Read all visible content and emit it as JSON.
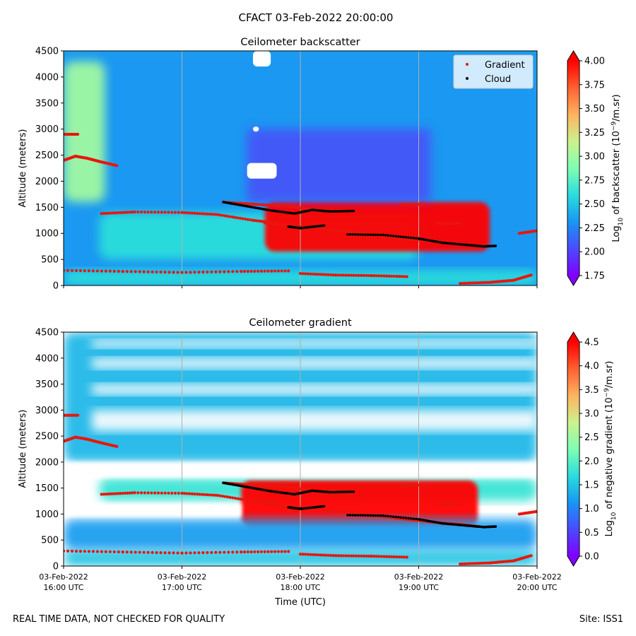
{
  "figure": {
    "title": "CFACT 03-Feb-2022 20:00:00",
    "footer_left": "REAL TIME DATA, NOT CHECKED FOR QUALITY",
    "footer_right": "Site: ISS1"
  },
  "colors": {
    "gradient_marker": "#e8160d",
    "cloud_marker": "#000000",
    "colormap": [
      "#8000ff",
      "#4a4bfc",
      "#1996f3",
      "#2adddd",
      "#7ffeb3",
      "#ccf28c",
      "#ffb360",
      "#ff6030",
      "#ff0000"
    ]
  },
  "chart_data": [
    {
      "type": "heatmap",
      "title": "Ceilometer backscatter",
      "xlabel": "",
      "ylabel": "Altitude (meters)",
      "x_range_hours_utc": [
        16,
        20
      ],
      "ylim": [
        0,
        4500
      ],
      "yticks": [
        0,
        500,
        1000,
        1500,
        2000,
        2500,
        3000,
        3500,
        4000,
        4500
      ],
      "xticks": [
        "16:00",
        "17:00",
        "18:00",
        "19:00",
        "20:00"
      ],
      "grid": "vertical lines at hours",
      "legend": {
        "placement": "top-right",
        "entries": [
          "Gradient",
          "Cloud"
        ]
      },
      "colorbar": {
        "label": "Log10 of backscatter (10^-9/m.sr)",
        "min": 1.75,
        "max": 4.0,
        "ticks": [
          "4.00",
          "3.75",
          "3.50",
          "3.25",
          "3.00",
          "2.75",
          "2.50",
          "2.25",
          "2.00",
          "1.75"
        ]
      },
      "layers": [
        {
          "name": "background",
          "y_range": [
            0,
            4500
          ],
          "value": 2.3
        },
        {
          "name": "upper-left plume",
          "x_range": [
            16.0,
            16.35
          ],
          "y_range": [
            1600,
            4300
          ],
          "value": 3.0
        },
        {
          "name": "boundary layer",
          "x_range": [
            16.3,
            19.0
          ],
          "y_range": [
            500,
            1400
          ],
          "value": 2.6
        },
        {
          "name": "cloud deck",
          "x_range": [
            17.7,
            19.6
          ],
          "y_range": [
            650,
            1600
          ],
          "value": 4.1
        },
        {
          "name": "surface layer",
          "y_range": [
            0,
            300
          ],
          "value": 2.6
        }
      ],
      "gradient_points": [
        {
          "x": [
            16.0,
            16.12
          ],
          "y": [
            2900,
            2900
          ]
        },
        {
          "x": [
            16.0,
            16.1,
            16.2,
            16.3,
            16.45
          ],
          "y": [
            2400,
            2480,
            2440,
            2380,
            2300
          ]
        },
        {
          "x": [
            16.32,
            16.6,
            17.0,
            17.3,
            17.6,
            17.8
          ],
          "y": [
            1380,
            1410,
            1400,
            1360,
            1250,
            1200
          ]
        },
        {
          "x": [
            17.35,
            17.6,
            17.9,
            18.1,
            18.4
          ],
          "y": [
            1600,
            1560,
            1520,
            1450,
            1440
          ]
        },
        {
          "x": [
            17.7,
            18.0,
            18.4,
            18.8,
            19.1,
            19.35,
            19.5
          ],
          "y": [
            1200,
            1120,
            1040,
            920,
            850,
            800,
            760
          ]
        },
        {
          "x": [
            18.85,
            19.05
          ],
          "y": [
            1550,
            1560
          ]
        },
        {
          "x": [
            19.15,
            19.35
          ],
          "y": [
            1190,
            1190
          ]
        },
        {
          "x": [
            19.85,
            20.0
          ],
          "y": [
            1000,
            1050
          ]
        },
        {
          "x": [
            16.0,
            16.5,
            17.0,
            17.5,
            17.9
          ],
          "y": [
            290,
            270,
            250,
            270,
            280
          ]
        },
        {
          "x": [
            18.0,
            18.3,
            18.6,
            18.9
          ],
          "y": [
            230,
            200,
            190,
            170
          ]
        },
        {
          "x": [
            19.35,
            19.6,
            19.8,
            19.95
          ],
          "y": [
            40,
            60,
            100,
            200
          ]
        }
      ],
      "cloud_points": [
        {
          "x": [
            17.35,
            17.55,
            17.75,
            17.95,
            18.1,
            18.25,
            18.45
          ],
          "y": [
            1600,
            1520,
            1440,
            1380,
            1450,
            1420,
            1430
          ]
        },
        {
          "x": [
            17.9,
            18.0,
            18.2
          ],
          "y": [
            1130,
            1100,
            1150
          ]
        },
        {
          "x": [
            18.4,
            18.7,
            19.0,
            19.2,
            19.4,
            19.55,
            19.65
          ],
          "y": [
            980,
            970,
            900,
            820,
            780,
            750,
            760
          ]
        }
      ],
      "blank_regions": [
        {
          "x_range": [
            17.55,
            17.8
          ],
          "y_range": [
            2050,
            2350
          ]
        },
        {
          "x_range": [
            17.6,
            17.65
          ],
          "y_range": [
            2950,
            3050
          ]
        },
        {
          "x_range": [
            17.6,
            17.75
          ],
          "y_range": [
            4200,
            4500
          ]
        }
      ]
    },
    {
      "type": "heatmap",
      "title": "Ceilometer gradient",
      "xlabel": "Time (UTC)",
      "ylabel": "Altitude (meters)",
      "x_range_hours_utc": [
        16,
        20
      ],
      "ylim": [
        0,
        4500
      ],
      "yticks": [
        0,
        500,
        1000,
        1500,
        2000,
        2500,
        3000,
        3500,
        4000,
        4500
      ],
      "xticks": [
        "03-Feb-2022\n16:00 UTC",
        "03-Feb-2022\n17:00 UTC",
        "03-Feb-2022\n18:00 UTC",
        "03-Feb-2022\n19:00 UTC",
        "03-Feb-2022\n20:00 UTC"
      ],
      "grid": "vertical lines at hours",
      "colorbar": {
        "label": "Log10 of negative gradient (10^-9/m.sr)",
        "min": 0.0,
        "max": 4.5,
        "ticks": [
          "4.5",
          "4.0",
          "3.5",
          "3.0",
          "2.5",
          "2.0",
          "1.5",
          "1.0",
          "0.5",
          "0.0"
        ]
      },
      "layers": [
        {
          "name": "upper patches",
          "y_range": [
            2000,
            4500
          ],
          "value": 1.4
        },
        {
          "name": "mid layer",
          "x_range": [
            16.3,
            20.0
          ],
          "y_range": [
            1250,
            1700
          ],
          "value": 1.8
        },
        {
          "name": "cloud deck",
          "x_range": [
            17.5,
            19.5
          ],
          "y_range": [
            750,
            1650
          ],
          "value": 4.6
        },
        {
          "name": "lower layer",
          "y_range": [
            300,
            900
          ],
          "value": 1.2
        },
        {
          "name": "surface layer",
          "y_range": [
            0,
            300
          ],
          "value": 1.5
        }
      ]
    }
  ]
}
